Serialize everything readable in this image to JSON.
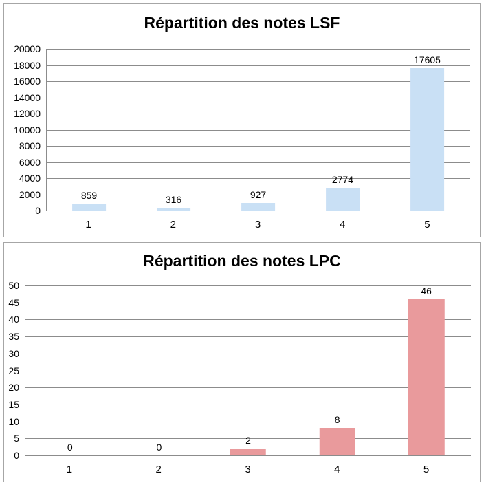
{
  "page": {
    "background_color": "#FFFFFF",
    "panel_border_color": "#A6A6A6",
    "gridline_color": "#8C8C8C",
    "text_color": "#000000"
  },
  "chart_data": [
    {
      "type": "bar",
      "title": "Répartition des notes LSF",
      "categories": [
        "1",
        "2",
        "3",
        "4",
        "5"
      ],
      "values": [
        859,
        316,
        927,
        2774,
        17605
      ],
      "data_labels": [
        "859",
        "316",
        "927",
        "2774",
        "17605"
      ],
      "xlabel": "",
      "ylabel": "",
      "ymin": 0,
      "ymax": 20000,
      "ystep": 2000,
      "ylim": [
        0,
        20000
      ],
      "grid": true,
      "legend": "none",
      "bar_color": "#C9E0F5"
    },
    {
      "type": "bar",
      "title": "Répartition des notes LPC",
      "categories": [
        "1",
        "2",
        "3",
        "4",
        "5"
      ],
      "values": [
        0,
        0,
        2,
        8,
        46
      ],
      "data_labels": [
        "0",
        "0",
        "2",
        "8",
        "46"
      ],
      "xlabel": "",
      "ylabel": "",
      "ymin": 0,
      "ymax": 50,
      "ystep": 5,
      "ylim": [
        0,
        50
      ],
      "grid": true,
      "legend": "none",
      "bar_color": "#E99A9C"
    }
  ]
}
